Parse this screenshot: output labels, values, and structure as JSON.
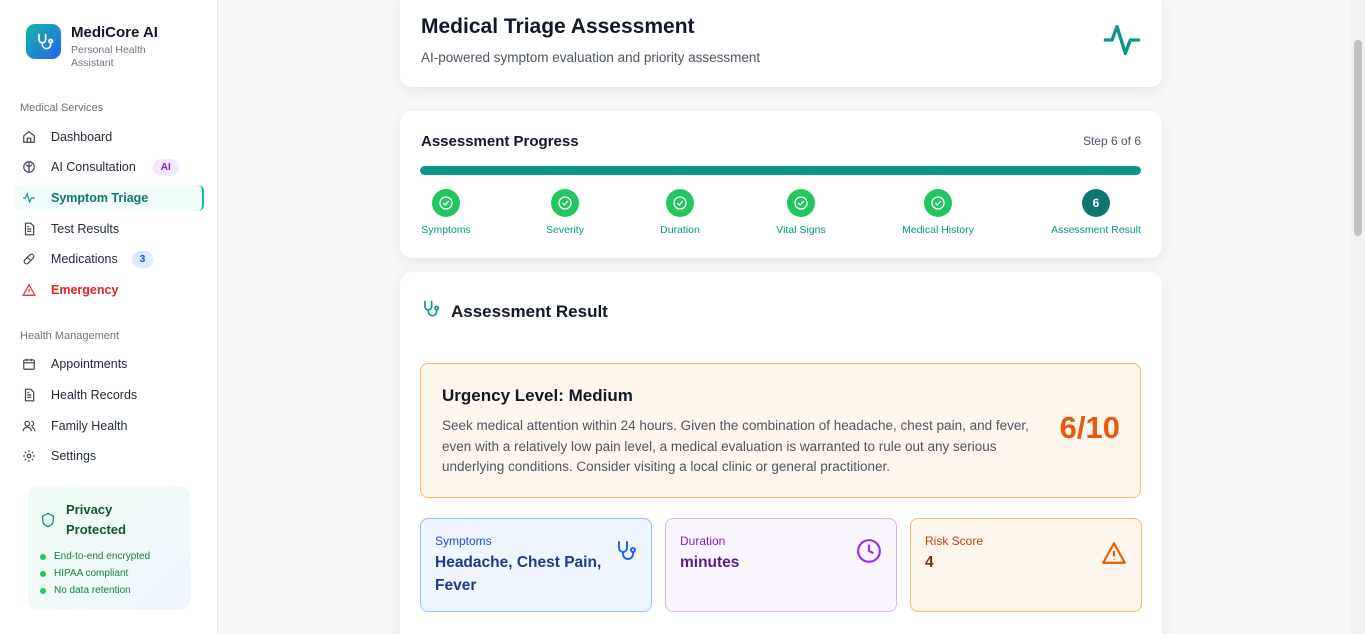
{
  "brand": {
    "name": "MediCore AI",
    "subtitle": "Personal Health Assistant"
  },
  "sidebar": {
    "section1": "Medical Services",
    "services": [
      {
        "label": "Dashboard",
        "icon": "home-icon"
      },
      {
        "label": "AI Consultation",
        "icon": "brain-icon",
        "badge": "AI"
      },
      {
        "label": "Symptom Triage",
        "icon": "activity-icon",
        "active": true
      },
      {
        "label": "Test Results",
        "icon": "file-icon"
      },
      {
        "label": "Medications",
        "icon": "pill-icon",
        "badge": "3"
      },
      {
        "label": "Emergency",
        "icon": "alert-triangle-icon"
      }
    ],
    "section2": "Health Management",
    "management": [
      {
        "label": "Appointments",
        "icon": "calendar-icon"
      },
      {
        "label": "Health Records",
        "icon": "file-icon"
      },
      {
        "label": "Family Health",
        "icon": "users-icon"
      },
      {
        "label": "Settings",
        "icon": "gear-icon"
      }
    ],
    "privacy": {
      "title": "Privacy Protected",
      "items": [
        "End-to-end encrypted",
        "HIPAA compliant",
        "No data retention"
      ]
    }
  },
  "header": {
    "title": "Medical Triage Assessment",
    "subtitle": "AI-powered symptom evaluation and priority assessment"
  },
  "progress": {
    "title": "Assessment Progress",
    "step_text": "Step 6 of 6",
    "fraction": 1.0,
    "steps": [
      {
        "label": "Symptoms",
        "done": true
      },
      {
        "label": "Severity",
        "done": true
      },
      {
        "label": "Duration",
        "done": true
      },
      {
        "label": "Vital Signs",
        "done": true
      },
      {
        "label": "Medical History",
        "done": true
      },
      {
        "label": "Assessment Result",
        "number": "6"
      }
    ]
  },
  "result": {
    "title": "Assessment Result",
    "urgency_title": "Urgency Level: Medium",
    "urgency_desc": "Seek medical attention within 24 hours. Given the combination of headache, chest pain, and fever, even with a relatively low pain level, a medical evaluation is warranted to rule out any serious underlying conditions. Consider visiting a local clinic or general practitioner.",
    "score": "6/10",
    "metrics": {
      "symptoms": {
        "label": "Symptoms",
        "value": "Headache, Chest Pain, Fever"
      },
      "duration": {
        "label": "Duration",
        "value": "minutes"
      },
      "risk": {
        "label": "Risk Score",
        "value": "4"
      }
    }
  },
  "colors": {
    "accent": "#0d9488",
    "success": "#22c55e",
    "warning": "#ea580c",
    "danger": "#dc2626"
  }
}
